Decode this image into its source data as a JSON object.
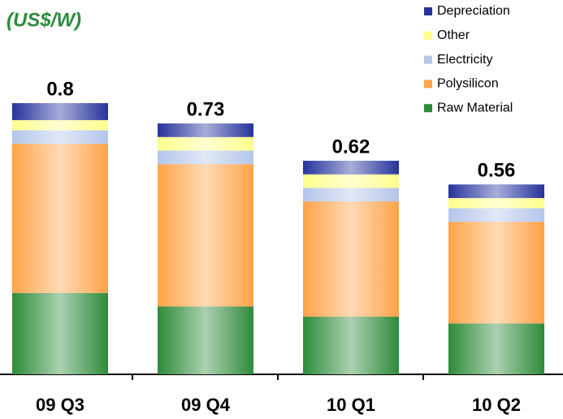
{
  "chart_data": {
    "type": "stacked-bar",
    "title": "(US$/W)",
    "categories": [
      "09 Q3",
      "09 Q4",
      "10 Q1",
      "10 Q2"
    ],
    "series": [
      {
        "name": "Raw Material",
        "color": "#2e8b3a",
        "values": [
          0.24,
          0.2,
          0.17,
          0.15
        ]
      },
      {
        "name": "Polysilicon",
        "color": "#ffa347",
        "values": [
          0.44,
          0.42,
          0.34,
          0.3
        ]
      },
      {
        "name": "Electricity",
        "color": "#b4c6ea",
        "values": [
          0.04,
          0.04,
          0.04,
          0.04
        ]
      },
      {
        "name": "Other",
        "color": "#ffff8c",
        "values": [
          0.03,
          0.04,
          0.04,
          0.03
        ]
      },
      {
        "name": "Depreciation",
        "color": "#26339c",
        "values": [
          0.05,
          0.04,
          0.04,
          0.04
        ]
      }
    ],
    "totals": [
      0.8,
      0.73,
      0.62,
      0.56
    ]
  }
}
